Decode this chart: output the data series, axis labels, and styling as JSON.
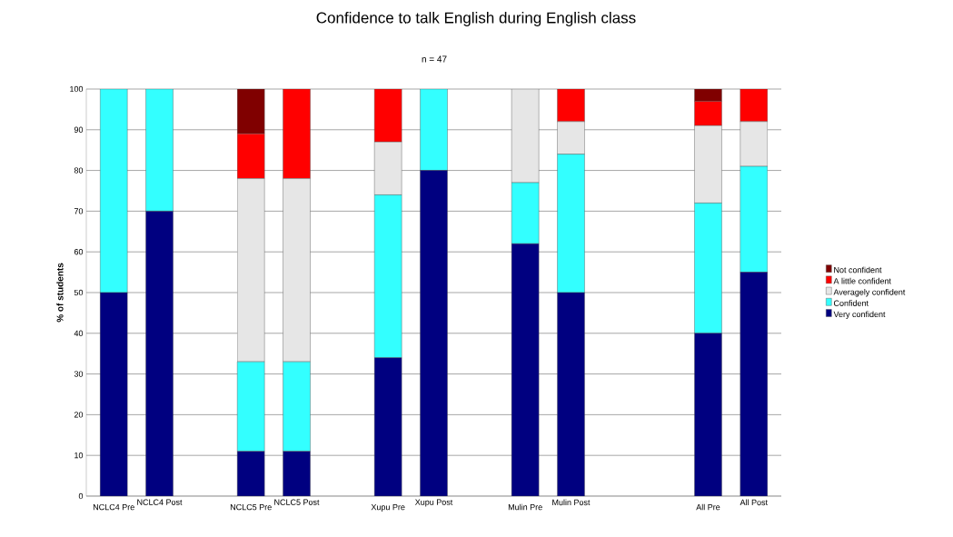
{
  "chart_data": {
    "type": "bar",
    "title": "Confidence to talk English during English class",
    "subtitle": "n = 47",
    "ylabel": "% of students",
    "categories": [
      "NCLC4 Pre",
      "NCLC4 Post",
      null,
      "NCLC5 Pre",
      "NCLC5 Post",
      null,
      "Xupu Pre",
      "Xupu Post",
      null,
      "Mulin Pre",
      "Mulin Post",
      null,
      null,
      "All Pre",
      "All Post"
    ],
    "stacked": true,
    "ylim": [
      0,
      100
    ],
    "yticks": [
      0,
      10,
      20,
      30,
      40,
      50,
      60,
      70,
      80,
      90,
      100
    ],
    "grid": "y",
    "legend": "right",
    "series": [
      {
        "name": "Very confident",
        "color": "#000080",
        "values": [
          50,
          70,
          null,
          11,
          11,
          null,
          34,
          80,
          null,
          62,
          50,
          null,
          null,
          40,
          55
        ]
      },
      {
        "name": "Confident",
        "color": "#33ffff",
        "values": [
          50,
          30,
          null,
          22,
          22,
          null,
          40,
          20,
          null,
          15,
          34,
          null,
          null,
          32,
          26
        ]
      },
      {
        "name": "Averagely confident",
        "color": "#e6e6e6",
        "values": [
          0,
          0,
          null,
          45,
          45,
          null,
          13,
          0,
          null,
          23,
          8,
          null,
          null,
          19,
          11
        ]
      },
      {
        "name": "A little confident",
        "color": "#ff0000",
        "values": [
          0,
          0,
          null,
          11,
          22,
          null,
          13,
          0,
          null,
          0,
          8,
          null,
          null,
          6,
          8
        ]
      },
      {
        "name": "Not confident",
        "color": "#800000",
        "values": [
          0,
          0,
          null,
          11,
          0,
          null,
          0,
          0,
          null,
          0,
          0,
          null,
          null,
          3,
          0
        ]
      }
    ]
  }
}
